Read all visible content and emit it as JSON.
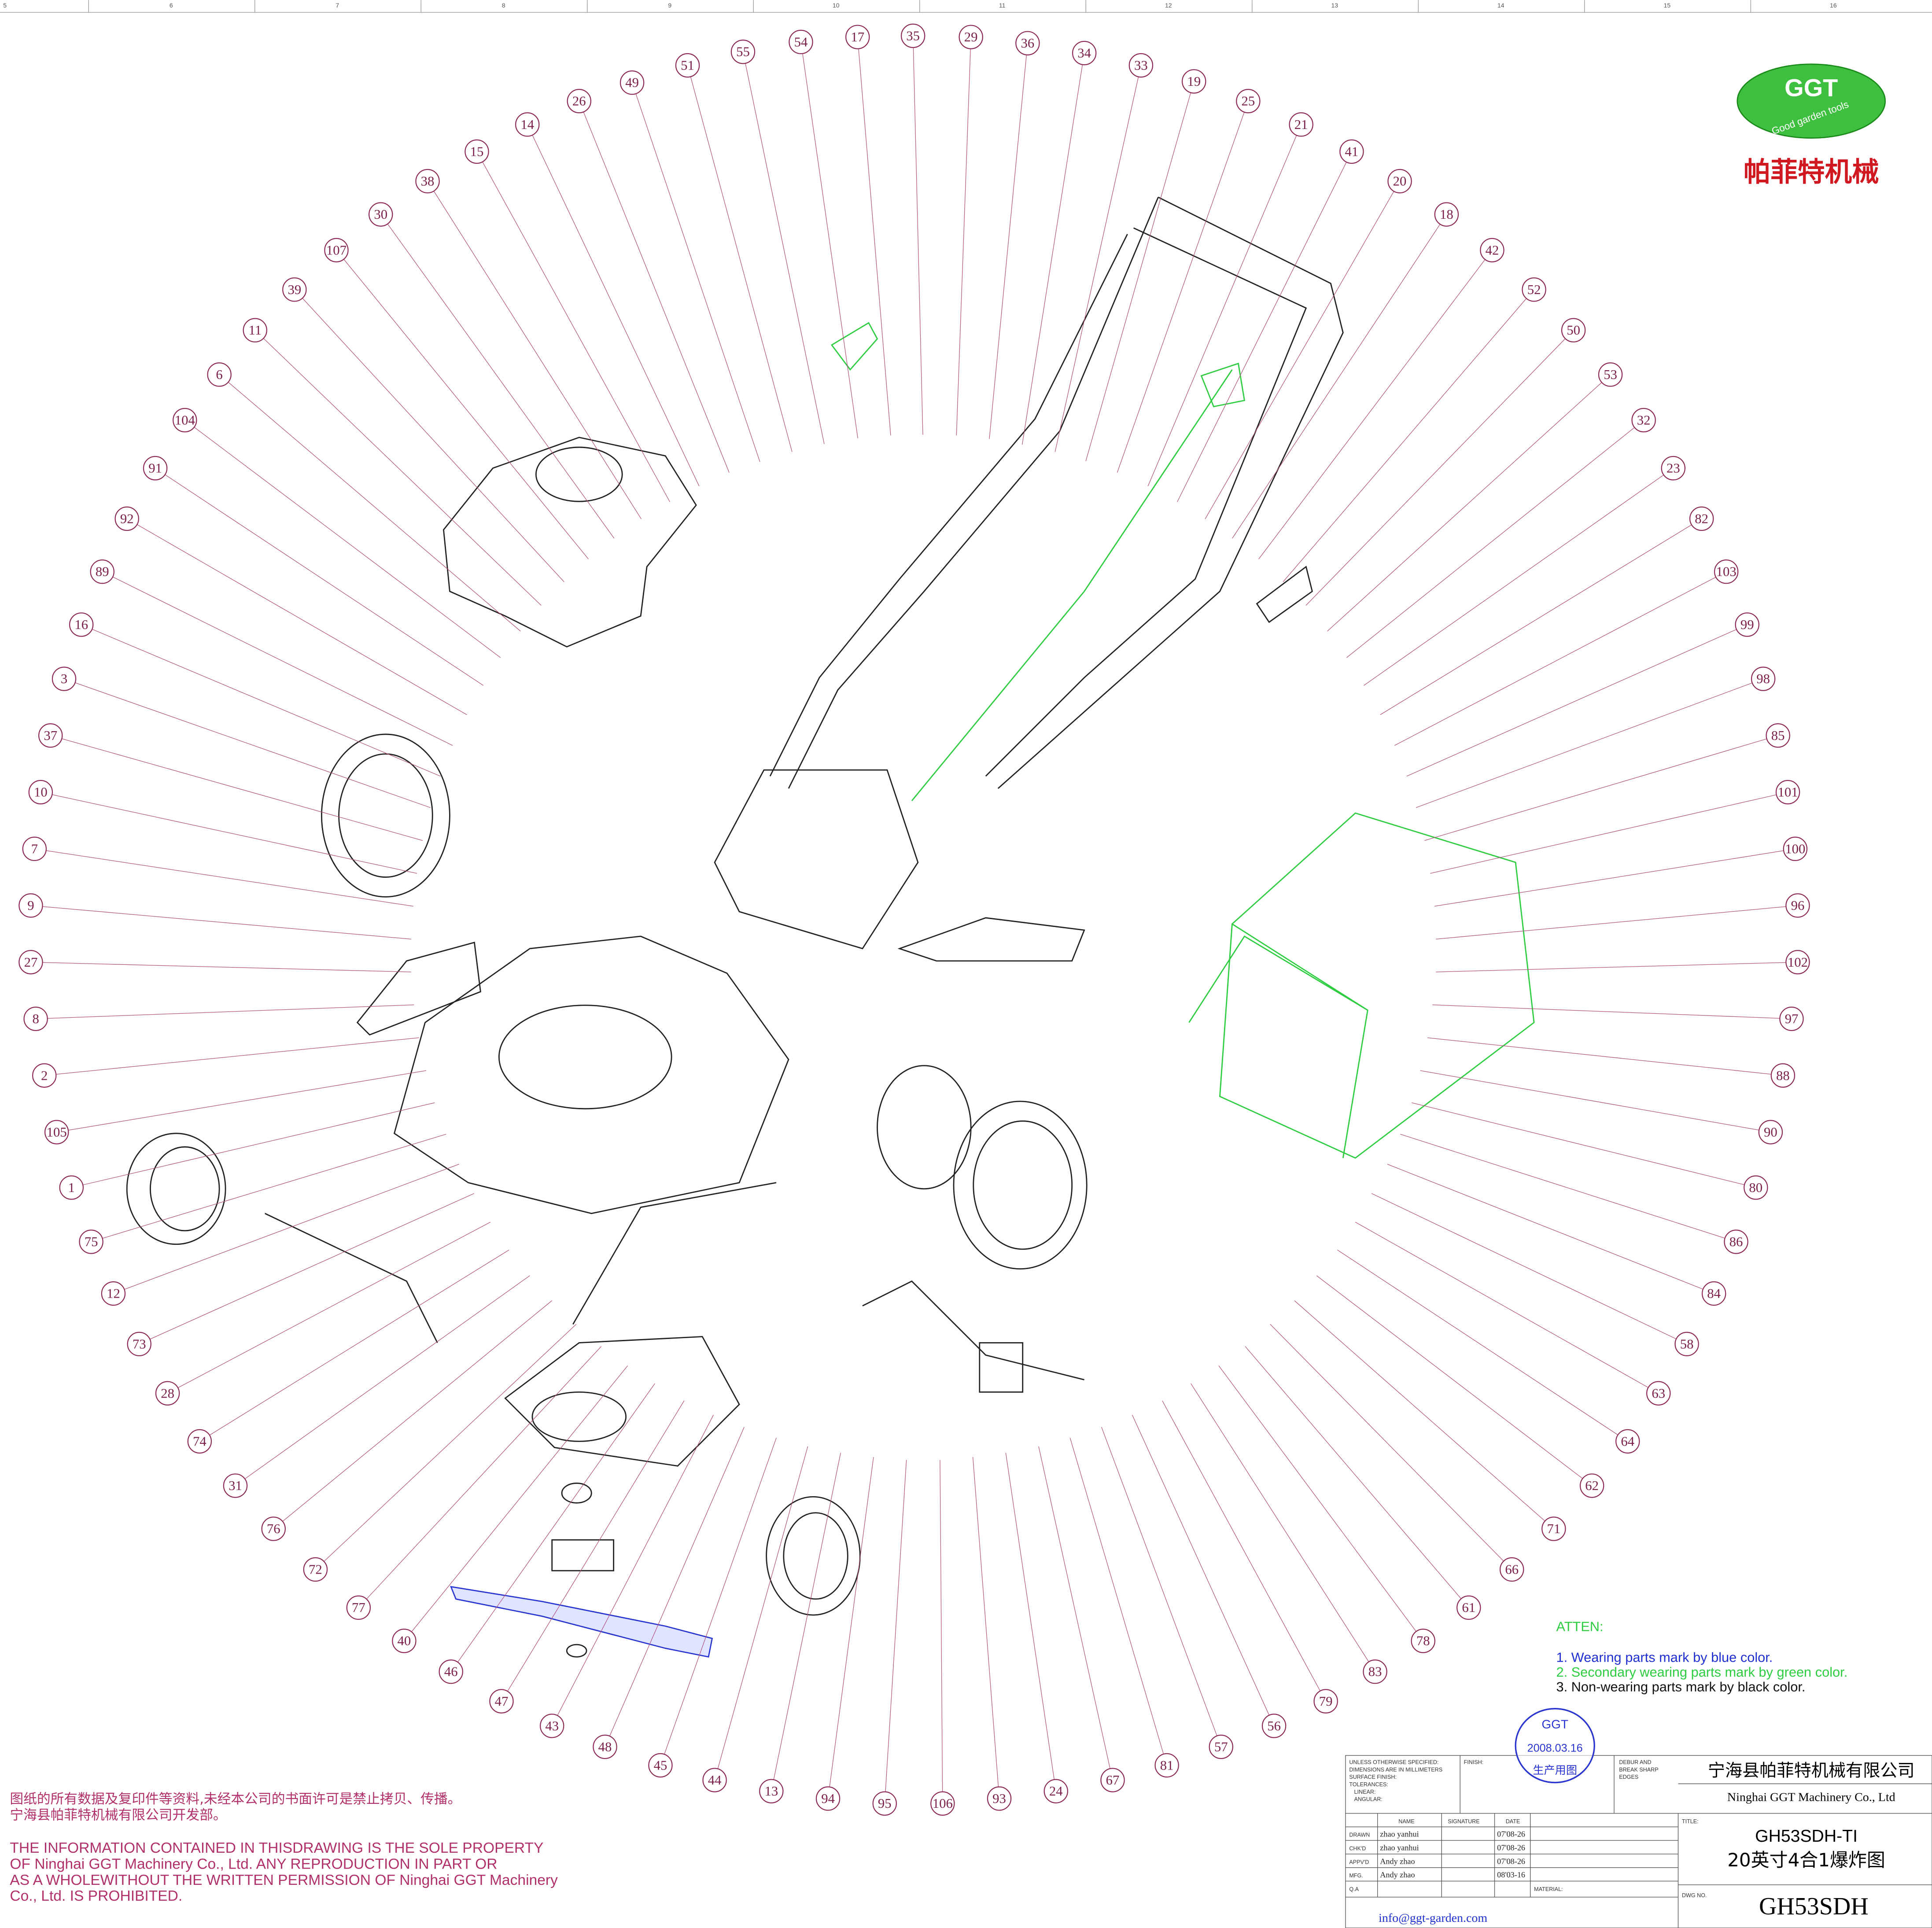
{
  "ruler": [
    "5",
    "6",
    "7",
    "8",
    "9",
    "10",
    "11",
    "12",
    "13",
    "14",
    "15",
    "16"
  ],
  "logo": {
    "mark": "GGT",
    "tagline": "Good garden tools",
    "name": "帕菲特机械"
  },
  "callouts": [
    "49",
    "51",
    "55",
    "54",
    "17",
    "35",
    "29",
    "36",
    "34",
    "33",
    "19",
    "25",
    "21",
    "41",
    "20",
    "18",
    "42",
    "52",
    "50",
    "53",
    "32",
    "23",
    "82",
    "103",
    "99",
    "98",
    "85",
    "101",
    "100",
    "96",
    "102",
    "97",
    "88",
    "90",
    "80",
    "86",
    "84",
    "58",
    "63",
    "64",
    "62",
    "71",
    "66",
    "61",
    "78",
    "83",
    "79",
    "56",
    "57",
    "81",
    "67",
    "24",
    "93",
    "106",
    "95",
    "94",
    "13",
    "44",
    "45",
    "48",
    "43",
    "47",
    "46",
    "40",
    "77",
    "72",
    "76",
    "31",
    "74",
    "28",
    "73",
    "12",
    "75",
    "1",
    "105",
    "2",
    "8",
    "27",
    "9",
    "7",
    "10",
    "37",
    "3",
    "16",
    "89",
    "92",
    "91",
    "104",
    "6",
    "11",
    "39",
    "107",
    "30",
    "38",
    "15",
    "14",
    "26"
  ],
  "notes": {
    "heading": "ATTEN:",
    "items": [
      "1. Wearing parts mark by blue color.",
      "2. Secondary wearing parts mark by green color.",
      "3. Non-wearing parts mark by black color."
    ]
  },
  "stamp": {
    "mark": "GGT",
    "date": "2008.03.16",
    "status": "生产用图"
  },
  "copyright": {
    "cn": [
      "图纸的所有数据及复印件等资料,未经本公司的书面许可是禁止拷贝、传播。",
      "宁海县帕菲特机械有限公司开发部。"
    ],
    "en": [
      "THE INFORMATION CONTAINED IN THISDRAWING IS THE SOLE PROPERTY",
      "OF Ninghai GGT Machinery Co., Ltd. ANY REPRODUCTION IN PART OR",
      "AS A WHOLEWITHOUT THE WRITTEN PERMISSION OF Ninghai GGT Machinery",
      "Co., Ltd. IS PROHIBITED."
    ]
  },
  "title_block": {
    "spec": [
      "UNLESS OTHERWISE SPECIFIED:",
      "DIMENSIONS ARE IN MILLIMETERS",
      "SURFACE FINISH:",
      "TOLERANCES:",
      "LINEAR:",
      "ANGULAR:"
    ],
    "finish": "FINISH:",
    "debur": [
      "DEBUR AND",
      "BREAK SHARP",
      "EDGES"
    ],
    "company_cn": "宁海县帕菲特机械有限公司",
    "company_en": "Ninghai GGT Machinery Co., Ltd",
    "headers": [
      "NAME",
      "SIGNATURE",
      "DATE"
    ],
    "rows": [
      [
        "DRAWN",
        "zhao yanhui",
        "07'08-26"
      ],
      [
        "CHK'D",
        "zhao yanhui",
        "07'08-26"
      ],
      [
        "APPV'D",
        "Andy zhao",
        "07'08-26"
      ],
      [
        "MFG.",
        "Andy zhao",
        "08'03-16"
      ],
      [
        "Q.A",
        "",
        ""
      ]
    ],
    "title_label": "TITLE:",
    "model": "GH53SDH-TI",
    "title": "20英寸4合1爆炸图",
    "material_label": "MATERIAL:",
    "dwg_label": "DWG NO.",
    "dwg_no": "GH53SDH"
  },
  "email": "info@ggt-garden.com"
}
